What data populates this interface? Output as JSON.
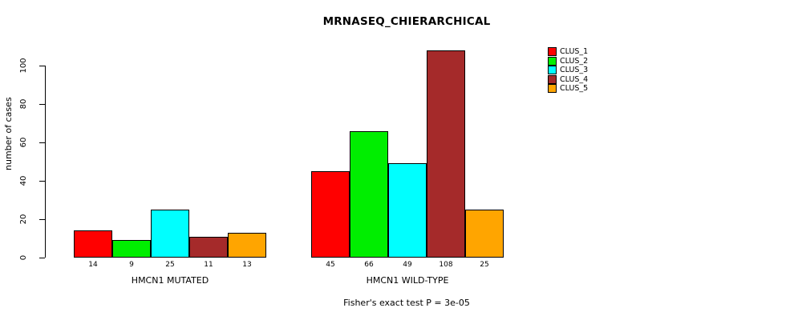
{
  "chart_data": {
    "type": "bar",
    "title": "MRNASEQ_CHIERARCHICAL",
    "ylabel": "number of cases",
    "xlabel": "",
    "annotation": "Fisher's exact test P = 3e-05",
    "categories": [
      "HMCN1 MUTATED",
      "HMCN1 WILD-TYPE"
    ],
    "series": [
      {
        "name": "CLUS_1",
        "color": "#ff0000",
        "values": [
          14,
          45
        ]
      },
      {
        "name": "CLUS_2",
        "color": "#00ee00",
        "values": [
          9,
          66
        ]
      },
      {
        "name": "CLUS_3",
        "color": "#00ffff",
        "values": [
          25,
          49
        ]
      },
      {
        "name": "CLUS_4",
        "color": "#a52a2a",
        "values": [
          11,
          108
        ]
      },
      {
        "name": "CLUS_5",
        "color": "#ffa500",
        "values": [
          13,
          25
        ]
      }
    ],
    "yticks": [
      0,
      20,
      40,
      60,
      80,
      100
    ],
    "ylim": [
      0,
      110
    ],
    "grid": false,
    "legend_position": "right"
  }
}
